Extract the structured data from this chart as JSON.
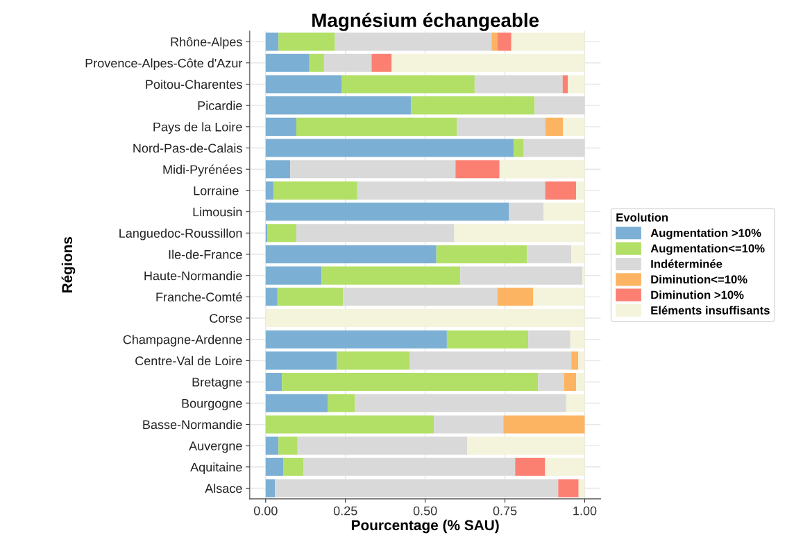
{
  "chart_data": {
    "type": "bar",
    "orientation": "horizontal",
    "stacked": true,
    "title": "Magnésium échangeable",
    "xlabel": "Pourcentage (% SAU)",
    "ylabel": "Régions",
    "legend_title": "Evolution",
    "legend": "right",
    "grid": true,
    "categories": [
      "Rhône-Alpes",
      "Provence-Alpes-Côte d'Azur",
      "Poitou-Charentes",
      "Picardie",
      "Pays de la Loire",
      "Nord-Pas-de-Calais",
      "Midi-Pyrénées",
      "Lorraine ",
      "Limousin",
      "Languedoc-Roussillon",
      "Ile-de-France",
      "Haute-Normandie",
      "Franche-Comté",
      "Corse",
      "Champagne-Ardenne",
      "Centre-Val de Loire",
      "Bretagne",
      "Bourgogne",
      "Basse-Normandie",
      "Auvergne",
      "Aquitaine",
      "Alsace"
    ],
    "xlim": [
      -0.05,
      1.05
    ],
    "xticks": [
      {
        "value": 0,
        "label": "0.00"
      },
      {
        "value": 0.25,
        "label": "0.25"
      },
      {
        "value": 0.5,
        "label": "0.50"
      },
      {
        "value": 0.75,
        "label": "0.75"
      },
      {
        "value": 1,
        "label": "1.00"
      }
    ],
    "series": [
      {
        "name": "Augmentation >10%",
        "color": "#7bafd4",
        "values": [
          0.04,
          0.137,
          0.239,
          0.456,
          0.096,
          0.778,
          0.077,
          0.025,
          0.763,
          0.006,
          0.535,
          0.175,
          0.037,
          0,
          0.568,
          0.223,
          0.051,
          0.194,
          0,
          0.04,
          0.056,
          0.029
        ]
      },
      {
        "name": "Augmentation<=10%",
        "color": "#b2df66",
        "values": [
          0.177,
          0.046,
          0.416,
          0.387,
          0.503,
          0.031,
          0,
          0.262,
          0,
          0.09,
          0.284,
          0.435,
          0.206,
          0,
          0.255,
          0.229,
          0.803,
          0.086,
          0.527,
          0.06,
          0.063,
          0
        ]
      },
      {
        "name": "Indéterminée",
        "color": "#d9d9d9",
        "values": [
          0.491,
          0.149,
          0.276,
          0.157,
          0.277,
          0.191,
          0.518,
          0.589,
          0.108,
          0.495,
          0.139,
          0.383,
          0.483,
          0,
          0.132,
          0.506,
          0.081,
          0.662,
          0.218,
          0.532,
          0.663,
          0.888
        ]
      },
      {
        "name": "Diminution<=10%",
        "color": "#fdb462",
        "values": [
          0.019,
          0,
          0,
          0,
          0.056,
          0,
          0,
          0,
          0,
          0,
          0,
          0,
          0.112,
          0,
          0,
          0.022,
          0.038,
          0,
          0.255,
          0,
          0,
          0
        ]
      },
      {
        "name": "Diminution >10%",
        "color": "#fb8072",
        "values": [
          0.043,
          0.063,
          0.016,
          0,
          0,
          0,
          0.138,
          0.097,
          0,
          0,
          0,
          0,
          0,
          0,
          0,
          0,
          0,
          0,
          0,
          0,
          0.094,
          0.064
        ]
      },
      {
        "name": "Eléments insuffisants",
        "color": "#f4f3dc",
        "values": [
          0.23,
          0.605,
          0.053,
          0,
          0.068,
          0,
          0.267,
          0.027,
          0.129,
          0.409,
          0.042,
          0.007,
          0.162,
          1,
          0.045,
          0.02,
          0.027,
          0.058,
          0,
          0.368,
          0.124,
          0.019
        ]
      }
    ]
  }
}
